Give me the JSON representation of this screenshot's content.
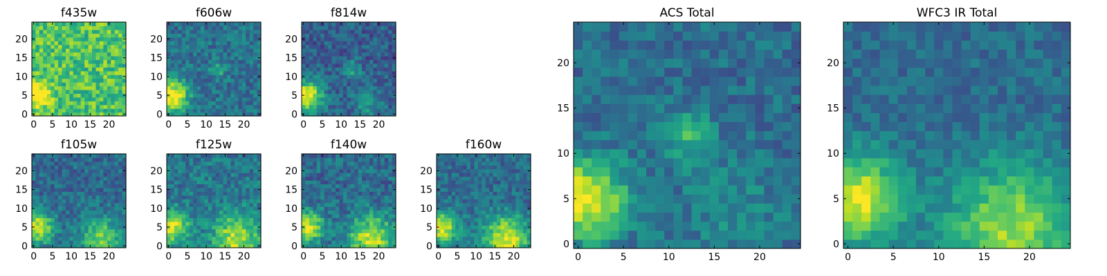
{
  "figure": {
    "description_colormap": "viridis"
  },
  "chart_data": [
    {
      "type": "heatmap",
      "title": "f435w",
      "grid_size": 25,
      "hotspots": [
        {
          "x": 1,
          "y": 5,
          "intensity": 0.5,
          "radius": 2
        }
      ],
      "base": 0.72,
      "noise": 0.18,
      "xticks": [
        0,
        5,
        10,
        15,
        20
      ],
      "yticks": [
        0,
        5,
        10,
        15,
        20
      ],
      "xlim": [
        0,
        24
      ],
      "ylim": [
        0,
        24
      ]
    },
    {
      "type": "heatmap",
      "title": "f606w",
      "grid_size": 25,
      "hotspots": [
        {
          "x": 1,
          "y": 5,
          "intensity": 0.65,
          "radius": 3
        },
        {
          "x": 13,
          "y": 12,
          "intensity": 0.25,
          "radius": 1.5
        }
      ],
      "base": 0.38,
      "noise": 0.14,
      "xticks": [
        0,
        5,
        10,
        15,
        20
      ],
      "yticks": [
        0,
        5,
        10,
        15,
        20
      ],
      "xlim": [
        0,
        24
      ],
      "ylim": [
        0,
        24
      ]
    },
    {
      "type": "heatmap",
      "title": "f814w",
      "grid_size": 25,
      "hotspots": [
        {
          "x": 1,
          "y": 5,
          "intensity": 0.7,
          "radius": 3
        },
        {
          "x": 13,
          "y": 12,
          "intensity": 0.3,
          "radius": 1.5
        },
        {
          "x": 17,
          "y": 3,
          "intensity": 0.25,
          "radius": 3
        }
      ],
      "base": 0.3,
      "noise": 0.14,
      "xticks": [
        0,
        5,
        10,
        15,
        20
      ],
      "yticks": [
        0,
        5,
        10,
        15,
        20
      ],
      "xlim": [
        0,
        24
      ],
      "ylim": [
        0,
        24
      ]
    },
    {
      "type": "heatmap",
      "title": "f105w",
      "grid_size": 25,
      "hotspots": [
        {
          "x": 1,
          "y": 5,
          "intensity": 0.6,
          "radius": 3
        },
        {
          "x": 18,
          "y": 2,
          "intensity": 0.45,
          "radius": 4
        }
      ],
      "base": 0.35,
      "noise": 0.14,
      "xticks": [
        0,
        5,
        10,
        15,
        20
      ],
      "yticks": [
        0,
        5,
        10,
        15,
        20
      ],
      "xlim": [
        0,
        24
      ],
      "ylim": [
        0,
        24
      ]
    },
    {
      "type": "heatmap",
      "title": "f125w",
      "grid_size": 25,
      "hotspots": [
        {
          "x": 1,
          "y": 5,
          "intensity": 0.55,
          "radius": 3
        },
        {
          "x": 18,
          "y": 2,
          "intensity": 0.5,
          "radius": 4.5
        }
      ],
      "base": 0.4,
      "noise": 0.15,
      "xticks": [
        0,
        5,
        10,
        15,
        20
      ],
      "yticks": [
        0,
        5,
        10,
        15,
        20
      ],
      "xlim": [
        0,
        24
      ],
      "ylim": [
        0,
        24
      ]
    },
    {
      "type": "heatmap",
      "title": "f140w",
      "grid_size": 25,
      "hotspots": [
        {
          "x": 1,
          "y": 5,
          "intensity": 0.6,
          "radius": 3
        },
        {
          "x": 18,
          "y": 2,
          "intensity": 0.55,
          "radius": 4.5
        }
      ],
      "base": 0.35,
      "noise": 0.15,
      "xticks": [
        0,
        5,
        10,
        15,
        20
      ],
      "yticks": [
        0,
        5,
        10,
        15,
        20
      ],
      "xlim": [
        0,
        24
      ],
      "ylim": [
        0,
        24
      ]
    },
    {
      "type": "heatmap",
      "title": "f160w",
      "grid_size": 25,
      "hotspots": [
        {
          "x": 1,
          "y": 5,
          "intensity": 0.6,
          "radius": 3
        },
        {
          "x": 18,
          "y": 2,
          "intensity": 0.6,
          "radius": 4.5
        }
      ],
      "base": 0.35,
      "noise": 0.13,
      "xticks": [
        0,
        5,
        10,
        15,
        20
      ],
      "yticks": [
        0,
        5,
        10,
        15,
        20
      ],
      "xlim": [
        0,
        24
      ],
      "ylim": [
        0,
        24
      ]
    },
    {
      "type": "heatmap",
      "title": "ACS Total",
      "grid_size": 25,
      "hotspots": [
        {
          "x": 1,
          "y": 5,
          "intensity": 0.65,
          "radius": 3
        },
        {
          "x": 12,
          "y": 12,
          "intensity": 0.3,
          "radius": 2
        },
        {
          "x": 17,
          "y": 4,
          "intensity": 0.12,
          "radius": 4
        }
      ],
      "base": 0.36,
      "noise": 0.12,
      "xticks": [
        0,
        5,
        10,
        15,
        20
      ],
      "yticks": [
        0,
        5,
        10,
        15,
        20
      ],
      "xlim": [
        0,
        24
      ],
      "ylim": [
        0,
        24
      ]
    },
    {
      "type": "heatmap",
      "title": "WFC3 IR Total",
      "grid_size": 25,
      "hotspots": [
        {
          "x": 1,
          "y": 5,
          "intensity": 0.6,
          "radius": 3.5
        },
        {
          "x": 18,
          "y": 2,
          "intensity": 0.5,
          "radius": 5
        }
      ],
      "base": 0.35,
      "noise": 0.1,
      "xticks": [
        0,
        5,
        10,
        15,
        20
      ],
      "yticks": [
        0,
        5,
        10,
        15,
        20
      ],
      "xlim": [
        0,
        24
      ],
      "ylim": [
        0,
        24
      ]
    }
  ]
}
